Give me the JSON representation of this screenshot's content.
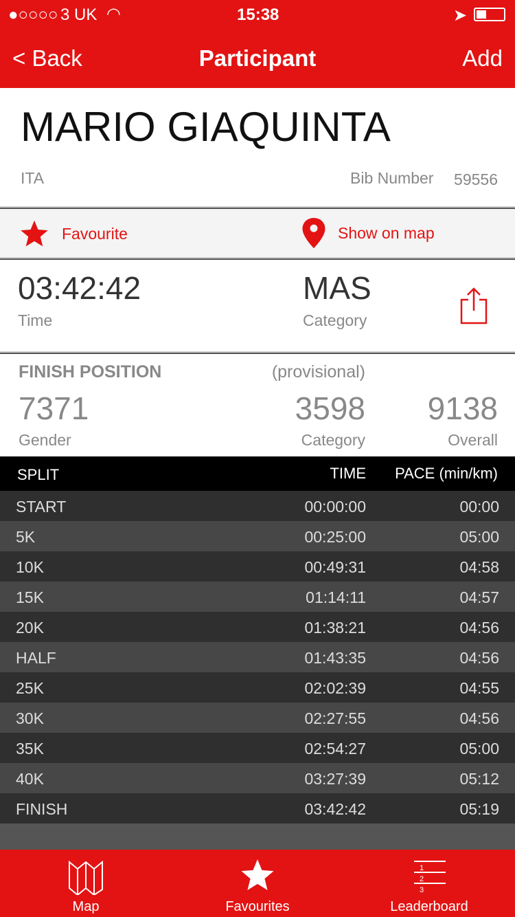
{
  "status": {
    "carrier": "3 UK",
    "time": "15:38"
  },
  "nav": {
    "back": "< Back",
    "title": "Participant",
    "add": "Add"
  },
  "participant": {
    "name": "MARIO GIAQUINTA",
    "country": "ITA",
    "bib_label": "Bib Number",
    "bib": "59556"
  },
  "actions": {
    "favourite": "Favourite",
    "show_on_map": "Show on map"
  },
  "result": {
    "time": "03:42:42",
    "time_label": "Time",
    "category": "MAS",
    "category_label": "Category"
  },
  "finish": {
    "title": "FINISH POSITION",
    "note": "(provisional)",
    "gender": "7371",
    "gender_label": "Gender",
    "category": "3598",
    "category_label": "Category",
    "overall": "9138",
    "overall_label": "Overall"
  },
  "table": {
    "headers": {
      "split": "SPLIT",
      "time": "TIME",
      "pace": "PACE (min/km)"
    },
    "rows": [
      {
        "split": "START",
        "time": "00:00:00",
        "pace": "00:00"
      },
      {
        "split": "5K",
        "time": "00:25:00",
        "pace": "05:00"
      },
      {
        "split": "10K",
        "time": "00:49:31",
        "pace": "04:58"
      },
      {
        "split": "15K",
        "time": "01:14:11",
        "pace": "04:57"
      },
      {
        "split": "20K",
        "time": "01:38:21",
        "pace": "04:56"
      },
      {
        "split": "HALF",
        "time": "01:43:35",
        "pace": "04:56"
      },
      {
        "split": "25K",
        "time": "02:02:39",
        "pace": "04:55"
      },
      {
        "split": "30K",
        "time": "02:27:55",
        "pace": "04:56"
      },
      {
        "split": "35K",
        "time": "02:54:27",
        "pace": "05:00"
      },
      {
        "split": "40K",
        "time": "03:27:39",
        "pace": "05:12"
      },
      {
        "split": "FINISH",
        "time": "03:42:42",
        "pace": "05:19"
      }
    ]
  },
  "tabs": [
    {
      "label": "Map",
      "icon": "map-icon"
    },
    {
      "label": "Favourites",
      "icon": "star-icon"
    },
    {
      "label": "Leaderboard",
      "icon": "leaderboard-icon"
    }
  ],
  "colors": {
    "brand": "#e31313"
  }
}
